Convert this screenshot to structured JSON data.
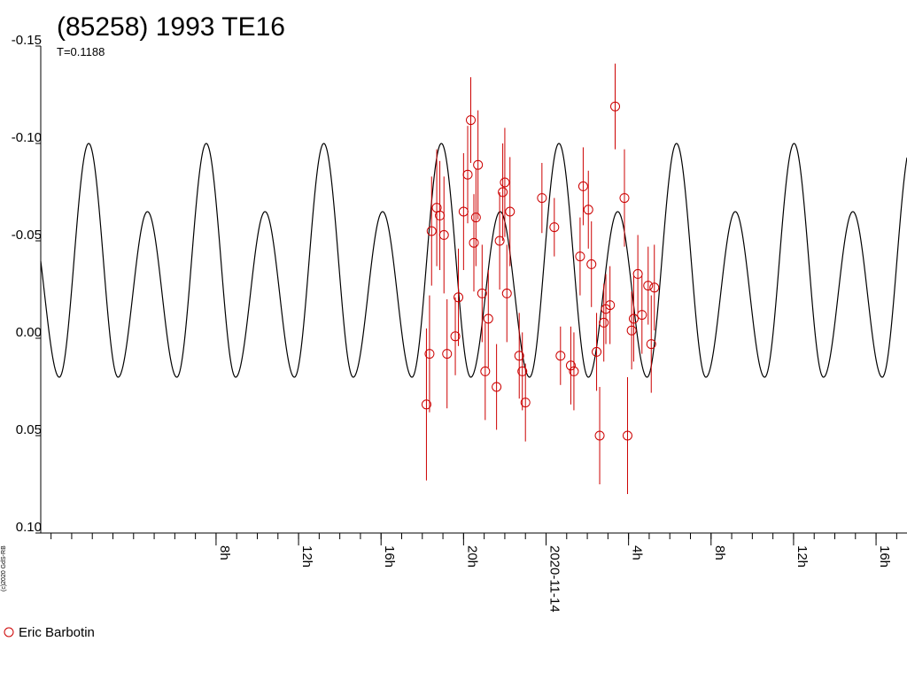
{
  "chart_data": {
    "type": "scatter",
    "title": "(85258) 1993 TE16",
    "subtitle": "T=0.1188",
    "credit": "(c)2020 GdS-RB",
    "y_axis": {
      "inverted": true,
      "min": -0.15,
      "max": 0.1,
      "ticks": [
        {
          "value": -0.15,
          "label": "-0.15"
        },
        {
          "value": -0.1,
          "label": "-0.10"
        },
        {
          "value": -0.05,
          "label": "-0.05"
        },
        {
          "value": 0.0,
          "label": "0.00"
        },
        {
          "value": 0.05,
          "label": "0.05"
        },
        {
          "value": 0.1,
          "label": "0.10"
        }
      ]
    },
    "x_axis": {
      "unit": "hours relative to 2020-11-14 00:00",
      "min": -24.5,
      "max": 17.5,
      "minor_tick_step": 1,
      "labels": [
        {
          "value": -16,
          "label": "8h"
        },
        {
          "value": -12,
          "label": "12h"
        },
        {
          "value": -8,
          "label": "16h"
        },
        {
          "value": -4,
          "label": "20h"
        },
        {
          "value": 0,
          "label": "2020-11-14"
        },
        {
          "value": 4,
          "label": "4h"
        },
        {
          "value": 8,
          "label": "8h"
        },
        {
          "value": 12,
          "label": "12h"
        },
        {
          "value": 16,
          "label": "16h"
        }
      ]
    },
    "model_curve": {
      "period_hours": 5.7,
      "offset_hours": -23.6,
      "upper_peak": -0.1,
      "lower_peak": -0.065,
      "trough": 0.02
    },
    "series": [
      {
        "name": "Eric Barbotin",
        "color": "#cc0000",
        "points": [
          {
            "x": -5.8,
            "y": 0.034,
            "err": 0.039
          },
          {
            "x": -5.65,
            "y": 0.008,
            "err": 0.03
          },
          {
            "x": -5.55,
            "y": -0.055,
            "err": 0.028
          },
          {
            "x": -5.3,
            "y": -0.067,
            "err": 0.03
          },
          {
            "x": -5.15,
            "y": -0.063,
            "err": 0.028
          },
          {
            "x": -4.95,
            "y": -0.053,
            "err": 0.03
          },
          {
            "x": -4.8,
            "y": 0.008,
            "err": 0.028
          },
          {
            "x": -4.4,
            "y": -0.001,
            "err": 0.02
          },
          {
            "x": -4.25,
            "y": -0.021,
            "err": 0.025
          },
          {
            "x": -4.0,
            "y": -0.065,
            "err": 0.03
          },
          {
            "x": -3.8,
            "y": -0.084,
            "err": 0.025
          },
          {
            "x": -3.65,
            "y": -0.112,
            "err": 0.022
          },
          {
            "x": -3.5,
            "y": -0.049,
            "err": 0.025
          },
          {
            "x": -3.4,
            "y": -0.062,
            "err": 0.025
          },
          {
            "x": -3.3,
            "y": -0.089,
            "err": 0.028
          },
          {
            "x": -3.1,
            "y": -0.023,
            "err": 0.025
          },
          {
            "x": -2.95,
            "y": 0.017,
            "err": 0.025
          },
          {
            "x": -2.8,
            "y": -0.01,
            "err": 0.025
          },
          {
            "x": -2.4,
            "y": 0.025,
            "err": 0.022
          },
          {
            "x": -2.25,
            "y": -0.05,
            "err": 0.025
          },
          {
            "x": -2.1,
            "y": -0.075,
            "err": 0.025
          },
          {
            "x": -2.0,
            "y": -0.08,
            "err": 0.028
          },
          {
            "x": -1.9,
            "y": -0.023,
            "err": 0.025
          },
          {
            "x": -1.75,
            "y": -0.065,
            "err": 0.028
          },
          {
            "x": -1.3,
            "y": 0.009,
            "err": 0.022
          },
          {
            "x": -1.15,
            "y": 0.017,
            "err": 0.02
          },
          {
            "x": -1.0,
            "y": 0.033,
            "err": 0.02
          },
          {
            "x": -0.2,
            "y": -0.072,
            "err": 0.018
          },
          {
            "x": 0.4,
            "y": -0.057,
            "err": 0.015
          },
          {
            "x": 0.7,
            "y": 0.009,
            "err": 0.015
          },
          {
            "x": 1.2,
            "y": 0.014,
            "err": 0.02
          },
          {
            "x": 1.35,
            "y": 0.017,
            "err": 0.02
          },
          {
            "x": 1.65,
            "y": -0.042,
            "err": 0.02
          },
          {
            "x": 1.8,
            "y": -0.078,
            "err": 0.02
          },
          {
            "x": 2.05,
            "y": -0.066,
            "err": 0.02
          },
          {
            "x": 2.2,
            "y": -0.038,
            "err": 0.022
          },
          {
            "x": 2.45,
            "y": 0.007,
            "err": 0.02
          },
          {
            "x": 2.6,
            "y": 0.05,
            "err": 0.025
          },
          {
            "x": 2.8,
            "y": -0.008,
            "err": 0.02
          },
          {
            "x": 2.9,
            "y": -0.015,
            "err": 0.018
          },
          {
            "x": 3.1,
            "y": -0.017,
            "err": 0.02
          },
          {
            "x": 3.35,
            "y": -0.119,
            "err": 0.022
          },
          {
            "x": 3.8,
            "y": -0.072,
            "err": 0.025
          },
          {
            "x": 3.95,
            "y": 0.05,
            "err": 0.03
          },
          {
            "x": 4.15,
            "y": -0.004,
            "err": 0.02
          },
          {
            "x": 4.25,
            "y": -0.01,
            "err": 0.022
          },
          {
            "x": 4.45,
            "y": -0.033,
            "err": 0.02
          },
          {
            "x": 4.65,
            "y": -0.012,
            "err": 0.02
          },
          {
            "x": 4.95,
            "y": -0.027,
            "err": 0.02
          },
          {
            "x": 5.1,
            "y": 0.003,
            "err": 0.025
          },
          {
            "x": 5.25,
            "y": -0.026,
            "err": 0.022
          }
        ]
      }
    ],
    "legend_position": "bottom-left",
    "grid": false
  }
}
